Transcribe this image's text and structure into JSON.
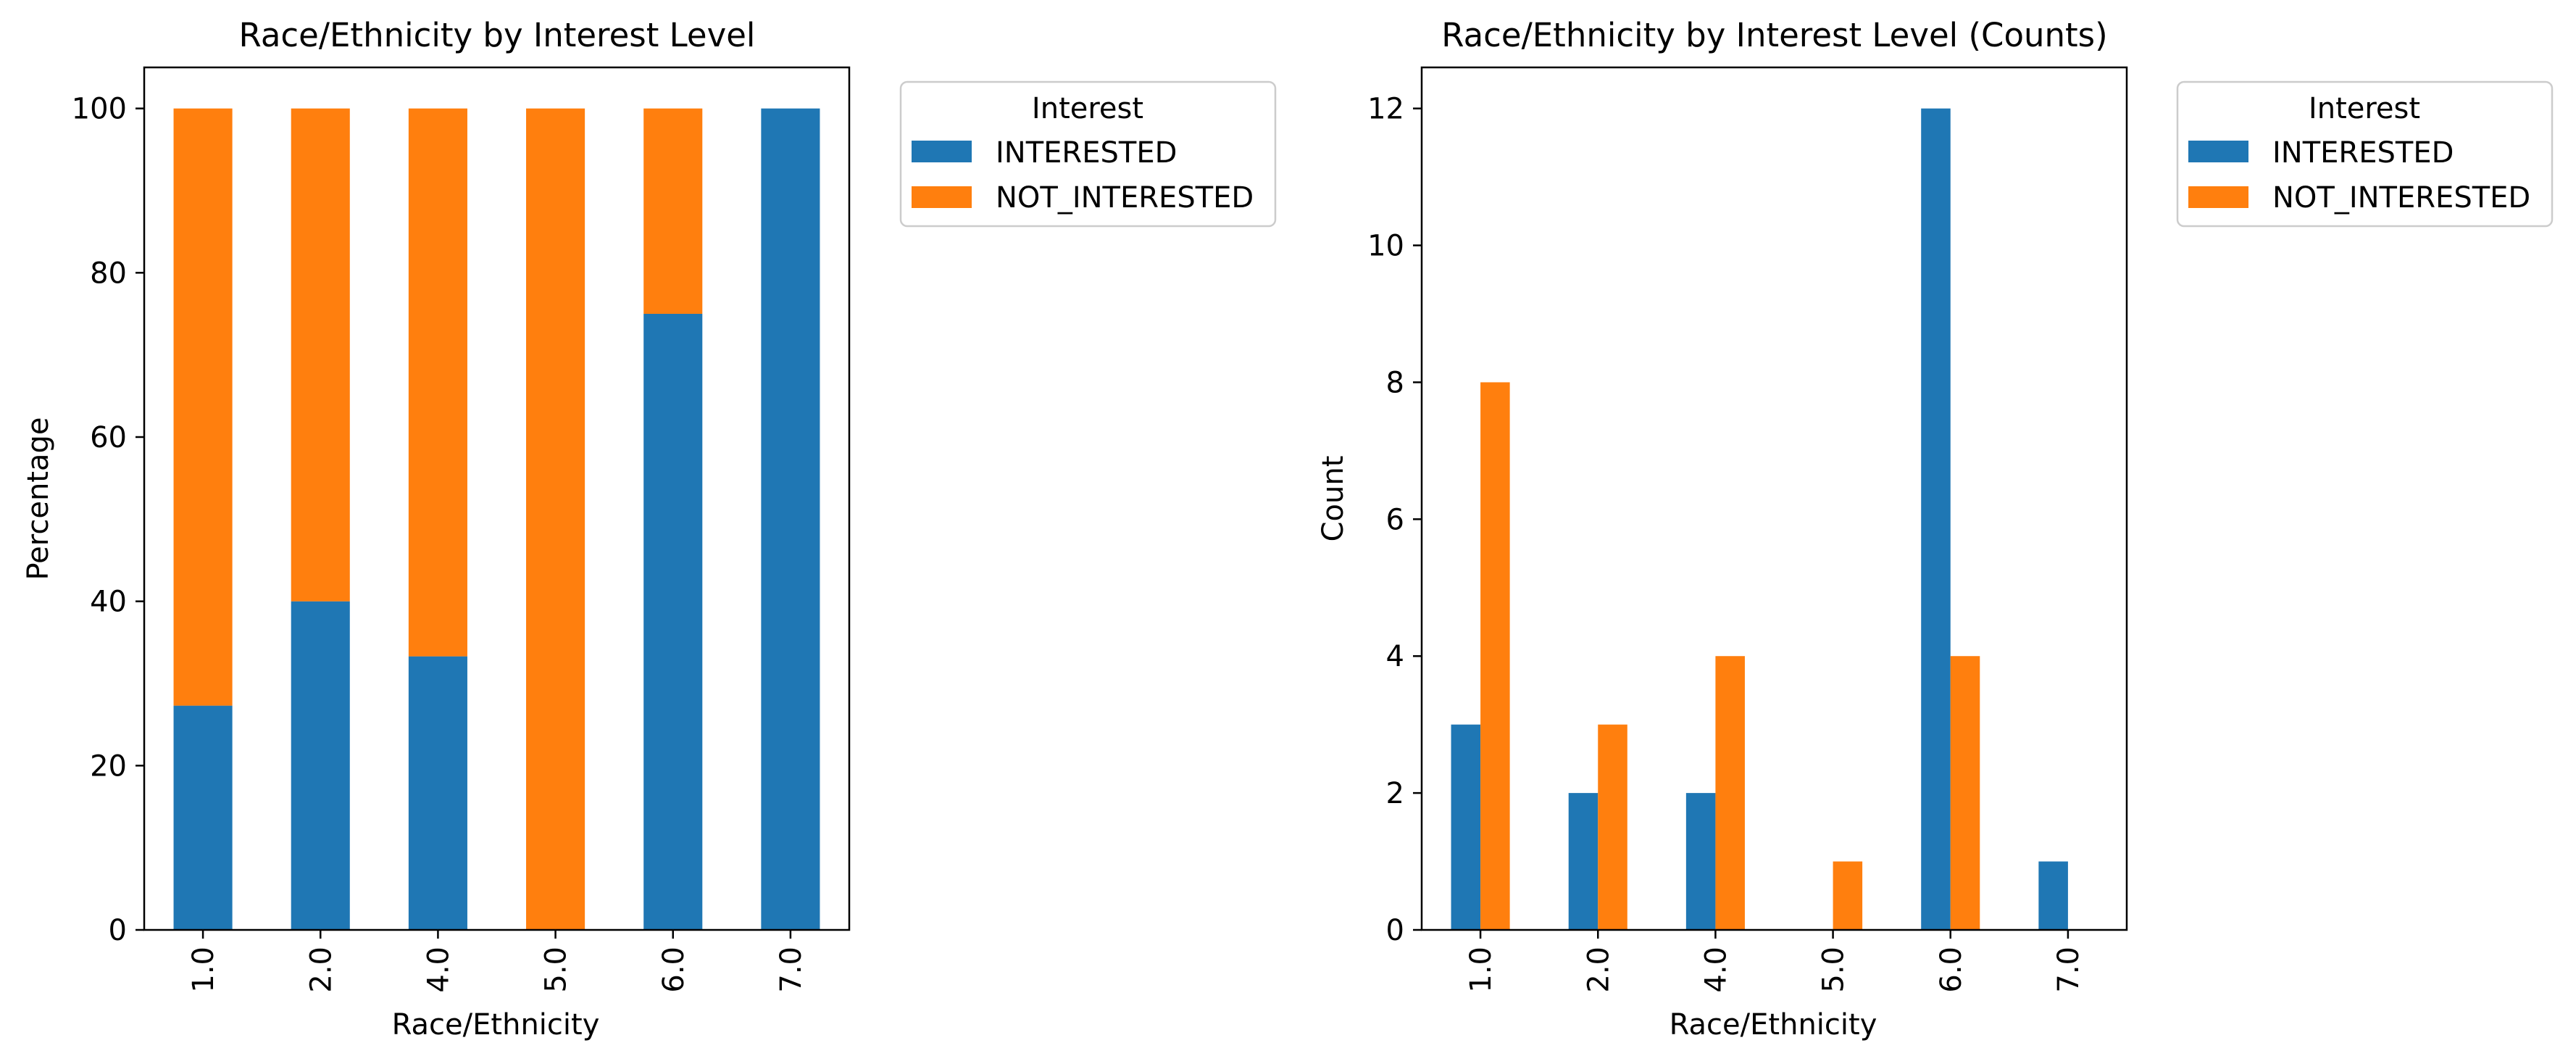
{
  "colors": {
    "interested": "#1f77b4",
    "not_interested": "#ff7f0e",
    "axis": "#000000",
    "legend_frame": "#cccccc"
  },
  "chart_data": [
    {
      "type": "bar",
      "stacked": true,
      "title": "Race/Ethnicity by Interest Level",
      "xlabel": "Race/Ethnicity",
      "ylabel": "Percentage",
      "categories": [
        "1.0",
        "2.0",
        "4.0",
        "5.0",
        "6.0",
        "7.0"
      ],
      "ylim": [
        0,
        105
      ],
      "yticks": [
        "0",
        "20",
        "40",
        "60",
        "80",
        "100"
      ],
      "grid": false,
      "legend": {
        "title": "Interest",
        "placement": "outside-upper-right",
        "entries": [
          "INTERESTED",
          "NOT_INTERESTED"
        ]
      },
      "series": [
        {
          "name": "INTERESTED",
          "values": [
            27.3,
            40.0,
            33.3,
            0.0,
            75.0,
            100.0
          ]
        },
        {
          "name": "NOT_INTERESTED",
          "values": [
            72.7,
            60.0,
            66.7,
            100.0,
            25.0,
            0.0
          ]
        }
      ]
    },
    {
      "type": "bar",
      "stacked": false,
      "title": "Race/Ethnicity by Interest Level (Counts)",
      "xlabel": "Race/Ethnicity",
      "ylabel": "Count",
      "categories": [
        "1.0",
        "2.0",
        "4.0",
        "5.0",
        "6.0",
        "7.0"
      ],
      "ylim": [
        0,
        12.6
      ],
      "yticks": [
        "0",
        "2",
        "4",
        "6",
        "8",
        "10",
        "12"
      ],
      "grid": false,
      "legend": {
        "title": "Interest",
        "placement": "outside-upper-right",
        "entries": [
          "INTERESTED",
          "NOT_INTERESTED"
        ]
      },
      "series": [
        {
          "name": "INTERESTED",
          "values": [
            3,
            2,
            2,
            0,
            12,
            1
          ]
        },
        {
          "name": "NOT_INTERESTED",
          "values": [
            8,
            3,
            4,
            1,
            4,
            0
          ]
        }
      ]
    }
  ]
}
